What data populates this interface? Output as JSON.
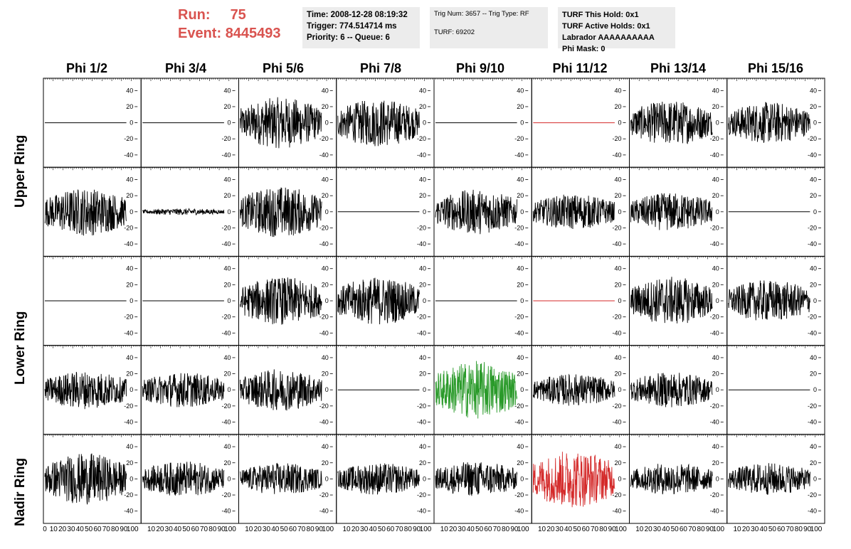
{
  "header": {
    "run_label": "Run:",
    "run_value": "75",
    "event_label": "Event:",
    "event_value": "8445493"
  },
  "info_time": {
    "time": "Time: 2008-12-28 08:19:32",
    "trigger": "Trigger: 774.514714 ms",
    "priority": "Priority: 6 -- Queue: 6"
  },
  "info_trig": {
    "trig_num": "Trig Num: 3657 -- Trig Type: RF",
    "turf": "TURF: 69202"
  },
  "info_turf": {
    "this_hold": "TURF This Hold: 0x1",
    "active_holds": "TURF Active Holds: 0x1",
    "labrador": "Labrador AAAAAAAAAA",
    "phi_mask": "Phi Mask: 0"
  },
  "colors": {
    "header_red": "#d9534f",
    "trace_default": "#000000",
    "trace_red": "#d42a2a",
    "trace_green": "#2a9a2a"
  },
  "chart_data": {
    "type": "line",
    "columns": [
      "Phi 1/2",
      "Phi 3/4",
      "Phi 5/6",
      "Phi 7/8",
      "Phi 9/10",
      "Phi 11/12",
      "Phi 13/14",
      "Phi 15/16"
    ],
    "rows": [
      "Upper Ring",
      "",
      "Lower Ring",
      "",
      "Nadir Ring"
    ],
    "xlim": [
      0,
      100
    ],
    "ylim": [
      -50,
      50
    ],
    "x_ticks": [
      "0",
      "10",
      "20",
      "30",
      "40",
      "50",
      "60",
      "70",
      "80",
      "90",
      "100"
    ],
    "y_ticks": [
      "40",
      "20",
      "0",
      "-20",
      "-40"
    ],
    "panels": [
      [
        {
          "amp": 0,
          "color": "black"
        },
        {
          "amp": 0,
          "color": "black"
        },
        {
          "amp": 32,
          "color": "black"
        },
        {
          "amp": 30,
          "color": "black"
        },
        {
          "amp": 0,
          "color": "black"
        },
        {
          "amp": 0,
          "color": "red"
        },
        {
          "amp": 28,
          "color": "black"
        },
        {
          "amp": 26,
          "color": "black"
        }
      ],
      [
        {
          "amp": 30,
          "color": "black"
        },
        {
          "amp": 4,
          "color": "black"
        },
        {
          "amp": 32,
          "color": "black"
        },
        {
          "amp": 0,
          "color": "black"
        },
        {
          "amp": 28,
          "color": "black"
        },
        {
          "amp": 22,
          "color": "black"
        },
        {
          "amp": 24,
          "color": "black"
        },
        {
          "amp": 0,
          "color": "black"
        }
      ],
      [
        {
          "amp": 0,
          "color": "black"
        },
        {
          "amp": 0,
          "color": "black"
        },
        {
          "amp": 30,
          "color": "black"
        },
        {
          "amp": 30,
          "color": "black"
        },
        {
          "amp": 0,
          "color": "black"
        },
        {
          "amp": 0,
          "color": "red"
        },
        {
          "amp": 30,
          "color": "black"
        },
        {
          "amp": 26,
          "color": "black"
        }
      ],
      [
        {
          "amp": 24,
          "color": "black"
        },
        {
          "amp": 22,
          "color": "black"
        },
        {
          "amp": 26,
          "color": "black"
        },
        {
          "amp": 0,
          "color": "black"
        },
        {
          "amp": 36,
          "color": "green"
        },
        {
          "amp": 20,
          "color": "black"
        },
        {
          "amp": 22,
          "color": "black"
        },
        {
          "amp": 0,
          "color": "black"
        }
      ],
      [
        {
          "amp": 32,
          "color": "black"
        },
        {
          "amp": 22,
          "color": "black"
        },
        {
          "amp": 20,
          "color": "black"
        },
        {
          "amp": 20,
          "color": "black"
        },
        {
          "amp": 22,
          "color": "black"
        },
        {
          "amp": 36,
          "color": "red"
        },
        {
          "amp": 20,
          "color": "black"
        },
        {
          "amp": 20,
          "color": "black"
        }
      ]
    ]
  }
}
